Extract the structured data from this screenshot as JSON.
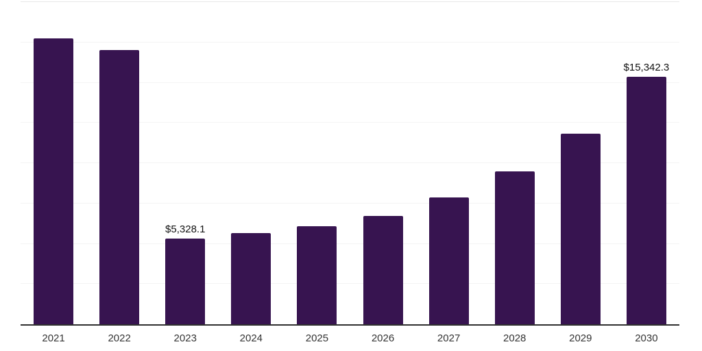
{
  "chart_data": {
    "type": "bar",
    "title": "",
    "xlabel": "",
    "ylabel": "",
    "categories": [
      "2021",
      "2022",
      "2023",
      "2024",
      "2025",
      "2026",
      "2027",
      "2028",
      "2029",
      "2030"
    ],
    "values": [
      17740,
      17020,
      5328.1,
      5660,
      6085,
      6725,
      7870,
      9490,
      11830,
      15342.3
    ],
    "data_labels": [
      "",
      "",
      "$5,328.1",
      "",
      "",
      "",
      "",
      "",
      "",
      "$15,342.3"
    ],
    "ylim": [
      0,
      20000
    ],
    "grid_step": 2500,
    "grid": true,
    "legend": false,
    "value_prefix": "$",
    "colors": {
      "bar": "#371450",
      "gridline": "#f4f4f4",
      "plot_top_border": "#e7e7e7",
      "axis_line": "#2f2f2f",
      "data_label_text": "#111111",
      "tick_text": "#333333",
      "background": "#ffffff"
    }
  }
}
